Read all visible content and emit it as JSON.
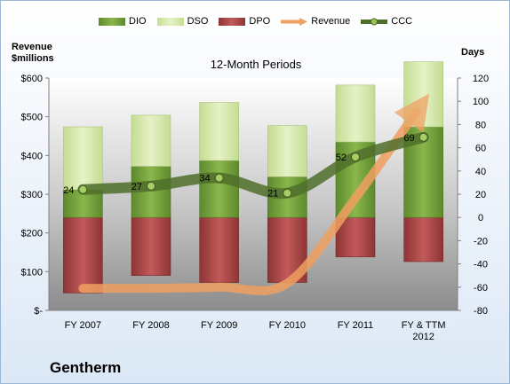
{
  "chart_data": {
    "type": "bar",
    "title": "12-Month Periods",
    "company": "Gentherm",
    "categories": [
      "FY 2007",
      "FY 2008",
      "FY 2009",
      "FY 2010",
      "FY 2011",
      "FY & TTM 2012"
    ],
    "left_axis": {
      "label": "Revenue $millions",
      "ylim": [
        0,
        600
      ],
      "ticks": [
        "$-",
        "$100",
        "$200",
        "$300",
        "$400",
        "$500",
        "$600"
      ]
    },
    "right_axis": {
      "label": "Days",
      "ylim": [
        -80,
        120
      ],
      "ticks": [
        "-80",
        "-60",
        "-40",
        "-20",
        "0",
        "20",
        "40",
        "60",
        "80",
        "100",
        "120"
      ]
    },
    "series": [
      {
        "name": "DIO",
        "kind": "stacked-bar",
        "color": "#77a03c",
        "values": [
          24,
          44,
          49,
          35,
          65,
          78
        ]
      },
      {
        "name": "DSO",
        "kind": "stacked-bar",
        "color": "#d4e8a8",
        "values": [
          54,
          44,
          50,
          44,
          49,
          56
        ]
      },
      {
        "name": "DPO",
        "kind": "negative-bar",
        "color": "#b04a4a",
        "values": [
          -65,
          -50,
          -56,
          -56,
          -34,
          -38
        ]
      },
      {
        "name": "Revenue",
        "kind": "line",
        "color": "#f0a060",
        "values": [
          57,
          57,
          60,
          70,
          290,
          545
        ]
      },
      {
        "name": "CCC",
        "kind": "line",
        "color": "#5a7a30",
        "values": [
          24,
          27,
          34,
          21,
          52,
          69
        ],
        "labels": [
          "24",
          "27",
          "34",
          "21",
          "52",
          "69"
        ]
      }
    ],
    "legend_position": "top",
    "grid": false
  }
}
